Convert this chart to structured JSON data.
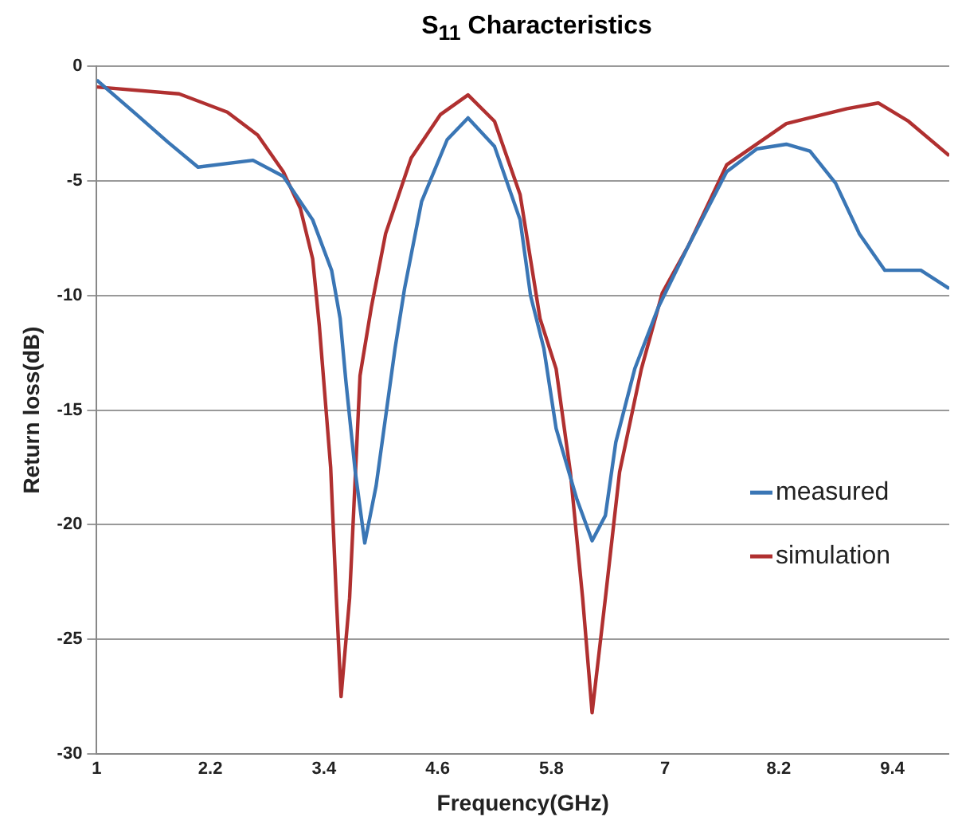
{
  "chart_data": {
    "type": "line",
    "title": "S$_{11}$ Characteristics",
    "xlabel": "Frequency(GHz)",
    "ylabel": "Return loss(dB)",
    "xlim": [
      1,
      10
    ],
    "xticks": [
      1,
      2.2,
      3.4,
      4.6,
      5.8,
      7,
      8.2,
      9.4
    ],
    "ylim": [
      -30,
      0
    ],
    "yticks": [
      -30,
      -25,
      -20,
      -15,
      -10,
      -5,
      0
    ],
    "grid": "y",
    "legend": "right",
    "marker": "none",
    "line_style": "solid",
    "series": [
      {
        "name": "measured",
        "color": "#3a76b5",
        "x": [
          1,
          1.42,
          1.75,
          2.07,
          2.65,
          2.97,
          3.28,
          3.48,
          3.57,
          3.63,
          3.73,
          3.83,
          3.95,
          4.15,
          4.25,
          4.43,
          4.7,
          4.92,
          5.2,
          5.47,
          5.58,
          5.72,
          5.85,
          6.07,
          6.23,
          6.37,
          6.48,
          6.68,
          6.93,
          7.25,
          7.65,
          7.97,
          8.28,
          8.53,
          8.8,
          9.05,
          9.32,
          9.7,
          10
        ],
        "values": [
          -0.6,
          -2.1,
          -3.3,
          -4.4,
          -4.1,
          -4.8,
          -6.7,
          -8.9,
          -11,
          -13.7,
          -17.7,
          -20.8,
          -18.3,
          -12.3,
          -9.7,
          -5.9,
          -3.2,
          -2.25,
          -3.5,
          -6.7,
          -10,
          -12.3,
          -15.8,
          -18.9,
          -20.7,
          -19.6,
          -16.4,
          -13.2,
          -10.5,
          -7.8,
          -4.6,
          -3.6,
          -3.4,
          -3.7,
          -5.1,
          -7.3,
          -8.9,
          -8.9,
          -9.7
        ]
      },
      {
        "name": "simulation",
        "color": "#b03030",
        "x": [
          1,
          1.87,
          2.38,
          2.7,
          2.97,
          3.15,
          3.28,
          3.35,
          3.47,
          3.53,
          3.58,
          3.67,
          3.78,
          3.9,
          4.05,
          4.32,
          4.63,
          4.92,
          5.2,
          5.47,
          5.68,
          5.85,
          6.0,
          6.13,
          6.23,
          6.37,
          6.52,
          6.75,
          6.97,
          7.25,
          7.65,
          8.28,
          8.92,
          9.25,
          9.57,
          10
        ],
        "values": [
          -0.9,
          -1.2,
          -2.0,
          -3.0,
          -4.6,
          -6.2,
          -8.4,
          -11.3,
          -17.5,
          -23.2,
          -27.5,
          -23.2,
          -13.5,
          -10.5,
          -7.3,
          -4.0,
          -2.1,
          -1.25,
          -2.4,
          -5.6,
          -11,
          -13.2,
          -17.7,
          -23.2,
          -28.2,
          -23.2,
          -17.7,
          -13.2,
          -9.9,
          -7.8,
          -4.3,
          -2.5,
          -1.85,
          -1.6,
          -2.4,
          -3.9
        ]
      }
    ]
  }
}
